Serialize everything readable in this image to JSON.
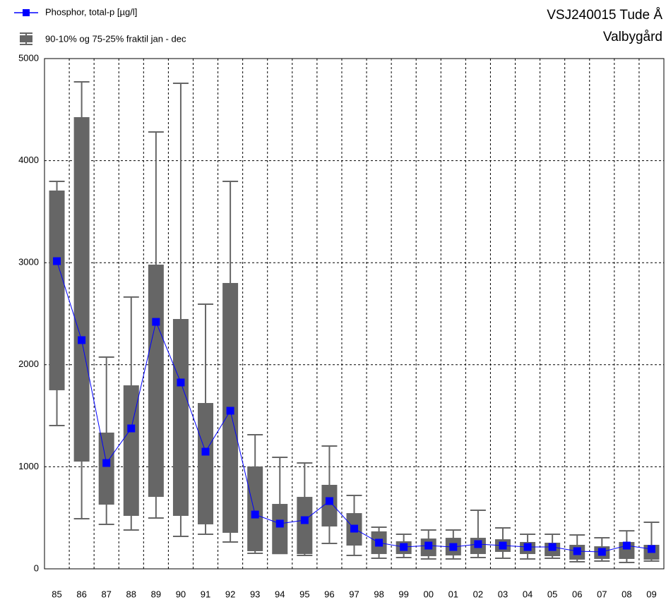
{
  "chart_data": {
    "type": "box-line",
    "title": "VSJ240015 Tude Å",
    "subtitle": "Valbygård",
    "categories": [
      "85",
      "86",
      "87",
      "88",
      "89",
      "90",
      "91",
      "92",
      "93",
      "94",
      "95",
      "96",
      "97",
      "98",
      "99",
      "00",
      "01",
      "02",
      "03",
      "04",
      "05",
      "06",
      "07",
      "08",
      "09"
    ],
    "ylim": [
      0,
      5000
    ],
    "yticks": [
      0,
      1000,
      2000,
      3000,
      4000,
      5000
    ],
    "grid": true,
    "boxes": {
      "name": "90-10% og 75-25% fraktil jan - dec",
      "color": "#666666",
      "p10": [
        1404,
        491,
        436,
        380,
        498,
        318,
        339,
        263,
        152,
        150,
        131,
        249,
        131,
        104,
        111,
        97,
        97,
        111,
        104,
        97,
        104,
        69,
        76,
        62,
        76
      ],
      "p25": [
        1750,
        1051,
        629,
        519,
        705,
        519,
        436,
        353,
        173,
        152,
        145,
        415,
        228,
        145,
        145,
        124,
        131,
        145,
        166,
        145,
        124,
        90,
        97,
        97,
        90
      ],
      "p75": [
        3707,
        4426,
        1335,
        1798,
        2981,
        2448,
        1625,
        2801,
        1003,
        636,
        705,
        823,
        546,
        367,
        270,
        297,
        304,
        304,
        290,
        263,
        256,
        235,
        221,
        263,
        235
      ],
      "p90": [
        3797,
        4772,
        2075,
        2663,
        4281,
        4758,
        2593,
        3797,
        1314,
        1093,
        1037,
        1203,
        719,
        408,
        339,
        380,
        380,
        574,
        401,
        339,
        339,
        332,
        304,
        373,
        456
      ]
    },
    "series": [
      {
        "name": "Phosphor, total-p [µg/l]",
        "color": "#0000ff",
        "values": [
          3015,
          2241,
          1037,
          1376,
          2420,
          1826,
          1148,
          1549,
          532,
          443,
          477,
          664,
          394,
          256,
          214,
          228,
          214,
          242,
          228,
          214,
          214,
          173,
          166,
          228,
          194
        ]
      }
    ]
  }
}
